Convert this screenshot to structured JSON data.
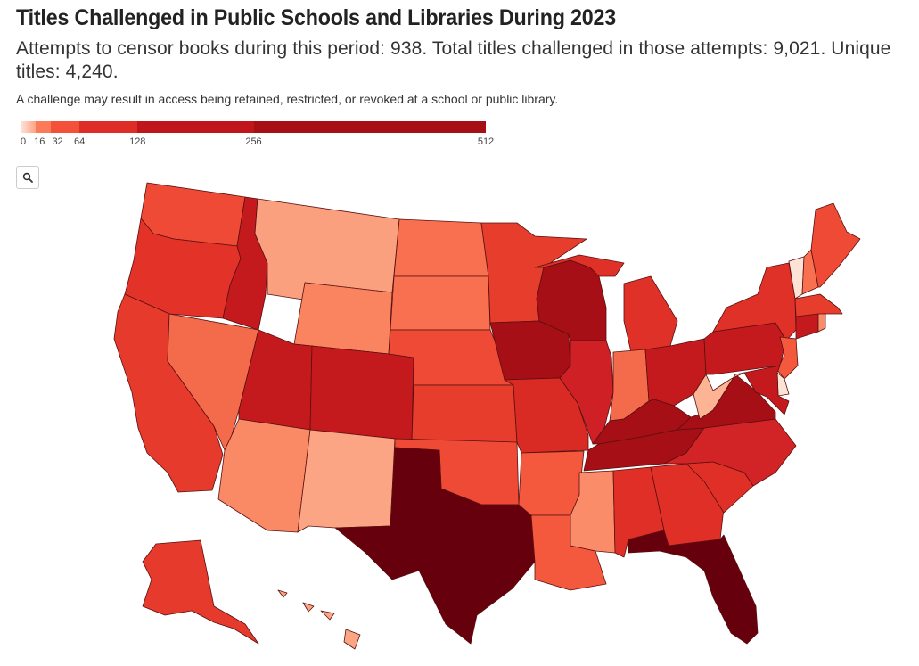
{
  "title": "Titles Challenged in Public Schools and Libraries During 2023",
  "subtitle": "Attempts to censor books during this period: 938. Total titles challenged in those attempts: 9,021. Unique titles: 4,240.",
  "note": "A challenge may result in access being retained, restricted, or revoked at a school or public library.",
  "legend": {
    "breaks": [
      {
        "value": 0,
        "label": "0"
      },
      {
        "value": 16,
        "label": "16"
      },
      {
        "value": 32,
        "label": "32"
      },
      {
        "value": 64,
        "label": "64"
      },
      {
        "value": 128,
        "label": "128"
      },
      {
        "value": 256,
        "label": "256"
      },
      {
        "value": 512,
        "label": "512"
      }
    ],
    "colors": [
      "#fde2d6",
      "#fca385",
      "#fb7a5a",
      "#f4513a",
      "#de2d26",
      "#c1151c",
      "#a50f15"
    ]
  },
  "zoom_icon": "search-icon",
  "map": {
    "fill_scale_note": "",
    "states": [
      {
        "id": "WA",
        "color": "#ef4a36"
      },
      {
        "id": "OR",
        "color": "#e33329"
      },
      {
        "id": "CA",
        "color": "#e53a2c"
      },
      {
        "id": "ID",
        "color": "#c41a1e"
      },
      {
        "id": "NV",
        "color": "#f46b4c"
      },
      {
        "id": "MT",
        "color": "#fba07f"
      },
      {
        "id": "WY",
        "color": "#f9845f"
      },
      {
        "id": "UT",
        "color": "#c41a1e"
      },
      {
        "id": "AZ",
        "color": "#fa8a66"
      },
      {
        "id": "CO",
        "color": "#c41a1e"
      },
      {
        "id": "NM",
        "color": "#fca584"
      },
      {
        "id": "ND",
        "color": "#f8704f"
      },
      {
        "id": "SD",
        "color": "#f8704f"
      },
      {
        "id": "NE",
        "color": "#ef4a36"
      },
      {
        "id": "KS",
        "color": "#e63d2d"
      },
      {
        "id": "OK",
        "color": "#ef4a36"
      },
      {
        "id": "TX",
        "color": "#67000d"
      },
      {
        "id": "MN",
        "color": "#e63d2d"
      },
      {
        "id": "IA",
        "color": "#a50f15"
      },
      {
        "id": "MO",
        "color": "#d92a24"
      },
      {
        "id": "AR",
        "color": "#f4593e"
      },
      {
        "id": "LA",
        "color": "#f4593e"
      },
      {
        "id": "WI",
        "color": "#a50f15"
      },
      {
        "id": "IL",
        "color": "#ce2025"
      },
      {
        "id": "MI",
        "color": "#e03128"
      },
      {
        "id": "IN",
        "color": "#f46b4c"
      },
      {
        "id": "OH",
        "color": "#c41a1e"
      },
      {
        "id": "KY",
        "color": "#a50f15"
      },
      {
        "id": "TN",
        "color": "#a50f15"
      },
      {
        "id": "MS",
        "color": "#fb8c69"
      },
      {
        "id": "AL",
        "color": "#e02f27"
      },
      {
        "id": "GA",
        "color": "#e02f27"
      },
      {
        "id": "FL",
        "color": "#67000d"
      },
      {
        "id": "SC",
        "color": "#e02f27"
      },
      {
        "id": "NC",
        "color": "#d22326"
      },
      {
        "id": "VA",
        "color": "#a50f15"
      },
      {
        "id": "WV",
        "color": "#fcb494"
      },
      {
        "id": "PA",
        "color": "#c41a1e"
      },
      {
        "id": "NY",
        "color": "#e03128"
      },
      {
        "id": "VT",
        "color": "#fde2d6"
      },
      {
        "id": "NH",
        "color": "#f8704f"
      },
      {
        "id": "ME",
        "color": "#ef4a36"
      },
      {
        "id": "MA",
        "color": "#e63d2d"
      },
      {
        "id": "CT",
        "color": "#c41a1e"
      },
      {
        "id": "RI",
        "color": "#fb8c69"
      },
      {
        "id": "NJ",
        "color": "#f4593e"
      },
      {
        "id": "DE",
        "color": "#fde2d6"
      },
      {
        "id": "MD",
        "color": "#c41a1e"
      },
      {
        "id": "AK",
        "color": "#e53a2c"
      },
      {
        "id": "HI",
        "color": "#fca584"
      }
    ]
  }
}
